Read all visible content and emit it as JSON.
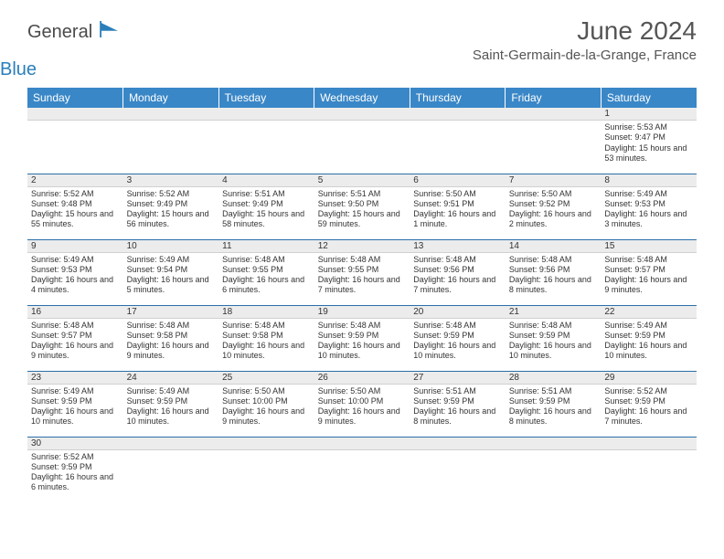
{
  "logo": {
    "text1": "General",
    "text2": "Blue"
  },
  "title": "June 2024",
  "location": "Saint-Germain-de-la-Grange, France",
  "colors": {
    "header_bg": "#3a87c7",
    "header_text": "#ffffff",
    "row_divider": "#2a6fa8",
    "daynum_bg": "#ececec",
    "logo_blue": "#2a7fba"
  },
  "weekdays": [
    "Sunday",
    "Monday",
    "Tuesday",
    "Wednesday",
    "Thursday",
    "Friday",
    "Saturday"
  ],
  "cells": [
    [
      {
        "empty": true
      },
      {
        "empty": true
      },
      {
        "empty": true
      },
      {
        "empty": true
      },
      {
        "empty": true
      },
      {
        "empty": true
      },
      {
        "day": "1",
        "sunrise": "Sunrise: 5:53 AM",
        "sunset": "Sunset: 9:47 PM",
        "daylight": "Daylight: 15 hours and 53 minutes."
      }
    ],
    [
      {
        "day": "2",
        "sunrise": "Sunrise: 5:52 AM",
        "sunset": "Sunset: 9:48 PM",
        "daylight": "Daylight: 15 hours and 55 minutes."
      },
      {
        "day": "3",
        "sunrise": "Sunrise: 5:52 AM",
        "sunset": "Sunset: 9:49 PM",
        "daylight": "Daylight: 15 hours and 56 minutes."
      },
      {
        "day": "4",
        "sunrise": "Sunrise: 5:51 AM",
        "sunset": "Sunset: 9:49 PM",
        "daylight": "Daylight: 15 hours and 58 minutes."
      },
      {
        "day": "5",
        "sunrise": "Sunrise: 5:51 AM",
        "sunset": "Sunset: 9:50 PM",
        "daylight": "Daylight: 15 hours and 59 minutes."
      },
      {
        "day": "6",
        "sunrise": "Sunrise: 5:50 AM",
        "sunset": "Sunset: 9:51 PM",
        "daylight": "Daylight: 16 hours and 1 minute."
      },
      {
        "day": "7",
        "sunrise": "Sunrise: 5:50 AM",
        "sunset": "Sunset: 9:52 PM",
        "daylight": "Daylight: 16 hours and 2 minutes."
      },
      {
        "day": "8",
        "sunrise": "Sunrise: 5:49 AM",
        "sunset": "Sunset: 9:53 PM",
        "daylight": "Daylight: 16 hours and 3 minutes."
      }
    ],
    [
      {
        "day": "9",
        "sunrise": "Sunrise: 5:49 AM",
        "sunset": "Sunset: 9:53 PM",
        "daylight": "Daylight: 16 hours and 4 minutes."
      },
      {
        "day": "10",
        "sunrise": "Sunrise: 5:49 AM",
        "sunset": "Sunset: 9:54 PM",
        "daylight": "Daylight: 16 hours and 5 minutes."
      },
      {
        "day": "11",
        "sunrise": "Sunrise: 5:48 AM",
        "sunset": "Sunset: 9:55 PM",
        "daylight": "Daylight: 16 hours and 6 minutes."
      },
      {
        "day": "12",
        "sunrise": "Sunrise: 5:48 AM",
        "sunset": "Sunset: 9:55 PM",
        "daylight": "Daylight: 16 hours and 7 minutes."
      },
      {
        "day": "13",
        "sunrise": "Sunrise: 5:48 AM",
        "sunset": "Sunset: 9:56 PM",
        "daylight": "Daylight: 16 hours and 7 minutes."
      },
      {
        "day": "14",
        "sunrise": "Sunrise: 5:48 AM",
        "sunset": "Sunset: 9:56 PM",
        "daylight": "Daylight: 16 hours and 8 minutes."
      },
      {
        "day": "15",
        "sunrise": "Sunrise: 5:48 AM",
        "sunset": "Sunset: 9:57 PM",
        "daylight": "Daylight: 16 hours and 9 minutes."
      }
    ],
    [
      {
        "day": "16",
        "sunrise": "Sunrise: 5:48 AM",
        "sunset": "Sunset: 9:57 PM",
        "daylight": "Daylight: 16 hours and 9 minutes."
      },
      {
        "day": "17",
        "sunrise": "Sunrise: 5:48 AM",
        "sunset": "Sunset: 9:58 PM",
        "daylight": "Daylight: 16 hours and 9 minutes."
      },
      {
        "day": "18",
        "sunrise": "Sunrise: 5:48 AM",
        "sunset": "Sunset: 9:58 PM",
        "daylight": "Daylight: 16 hours and 10 minutes."
      },
      {
        "day": "19",
        "sunrise": "Sunrise: 5:48 AM",
        "sunset": "Sunset: 9:59 PM",
        "daylight": "Daylight: 16 hours and 10 minutes."
      },
      {
        "day": "20",
        "sunrise": "Sunrise: 5:48 AM",
        "sunset": "Sunset: 9:59 PM",
        "daylight": "Daylight: 16 hours and 10 minutes."
      },
      {
        "day": "21",
        "sunrise": "Sunrise: 5:48 AM",
        "sunset": "Sunset: 9:59 PM",
        "daylight": "Daylight: 16 hours and 10 minutes."
      },
      {
        "day": "22",
        "sunrise": "Sunrise: 5:49 AM",
        "sunset": "Sunset: 9:59 PM",
        "daylight": "Daylight: 16 hours and 10 minutes."
      }
    ],
    [
      {
        "day": "23",
        "sunrise": "Sunrise: 5:49 AM",
        "sunset": "Sunset: 9:59 PM",
        "daylight": "Daylight: 16 hours and 10 minutes."
      },
      {
        "day": "24",
        "sunrise": "Sunrise: 5:49 AM",
        "sunset": "Sunset: 9:59 PM",
        "daylight": "Daylight: 16 hours and 10 minutes."
      },
      {
        "day": "25",
        "sunrise": "Sunrise: 5:50 AM",
        "sunset": "Sunset: 10:00 PM",
        "daylight": "Daylight: 16 hours and 9 minutes."
      },
      {
        "day": "26",
        "sunrise": "Sunrise: 5:50 AM",
        "sunset": "Sunset: 10:00 PM",
        "daylight": "Daylight: 16 hours and 9 minutes."
      },
      {
        "day": "27",
        "sunrise": "Sunrise: 5:51 AM",
        "sunset": "Sunset: 9:59 PM",
        "daylight": "Daylight: 16 hours and 8 minutes."
      },
      {
        "day": "28",
        "sunrise": "Sunrise: 5:51 AM",
        "sunset": "Sunset: 9:59 PM",
        "daylight": "Daylight: 16 hours and 8 minutes."
      },
      {
        "day": "29",
        "sunrise": "Sunrise: 5:52 AM",
        "sunset": "Sunset: 9:59 PM",
        "daylight": "Daylight: 16 hours and 7 minutes."
      }
    ],
    [
      {
        "day": "30",
        "sunrise": "Sunrise: 5:52 AM",
        "sunset": "Sunset: 9:59 PM",
        "daylight": "Daylight: 16 hours and 6 minutes."
      },
      {
        "empty": true
      },
      {
        "empty": true
      },
      {
        "empty": true
      },
      {
        "empty": true
      },
      {
        "empty": true
      },
      {
        "empty": true
      }
    ]
  ]
}
